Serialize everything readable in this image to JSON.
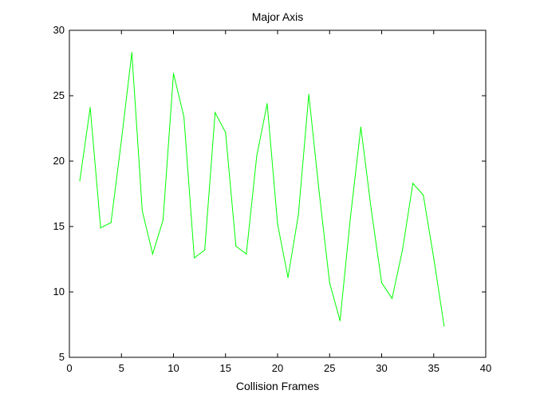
{
  "chart_data": {
    "type": "line",
    "title": "Major Axis",
    "xlabel": "Collision Frames",
    "ylabel": "",
    "xlim": [
      0,
      40
    ],
    "ylim": [
      5,
      30
    ],
    "xticks": [
      0,
      5,
      10,
      15,
      20,
      25,
      30,
      35,
      40
    ],
    "yticks": [
      5,
      10,
      15,
      20,
      25,
      30
    ],
    "xtick_labels": [
      "0",
      "5",
      "10",
      "15",
      "20",
      "25",
      "30",
      "35",
      "40"
    ],
    "ytick_labels": [
      "5",
      "10",
      "15",
      "20",
      "25",
      "30"
    ],
    "grid": false,
    "series": [
      {
        "color": "#00ff00",
        "x": [
          1,
          2,
          3,
          4,
          5,
          6,
          7,
          8,
          9,
          10,
          11,
          12,
          13,
          14,
          15,
          16,
          17,
          18,
          19,
          20,
          21,
          22,
          23,
          24,
          25,
          26,
          27,
          28,
          29,
          30,
          31,
          32,
          33,
          34,
          35,
          36
        ],
        "y": [
          18.5,
          24.1,
          14.9,
          15.3,
          21.6,
          28.3,
          16.2,
          12.9,
          15.5,
          26.7,
          23.4,
          12.6,
          13.2,
          23.7,
          22.2,
          13.5,
          12.9,
          20.4,
          24.4,
          15.2,
          11.1,
          15.9,
          25.1,
          17.6,
          10.7,
          7.8,
          15.7,
          22.6,
          16.3,
          10.7,
          9.5,
          13.2,
          18.3,
          17.4,
          12.6,
          7.4
        ]
      }
    ]
  }
}
